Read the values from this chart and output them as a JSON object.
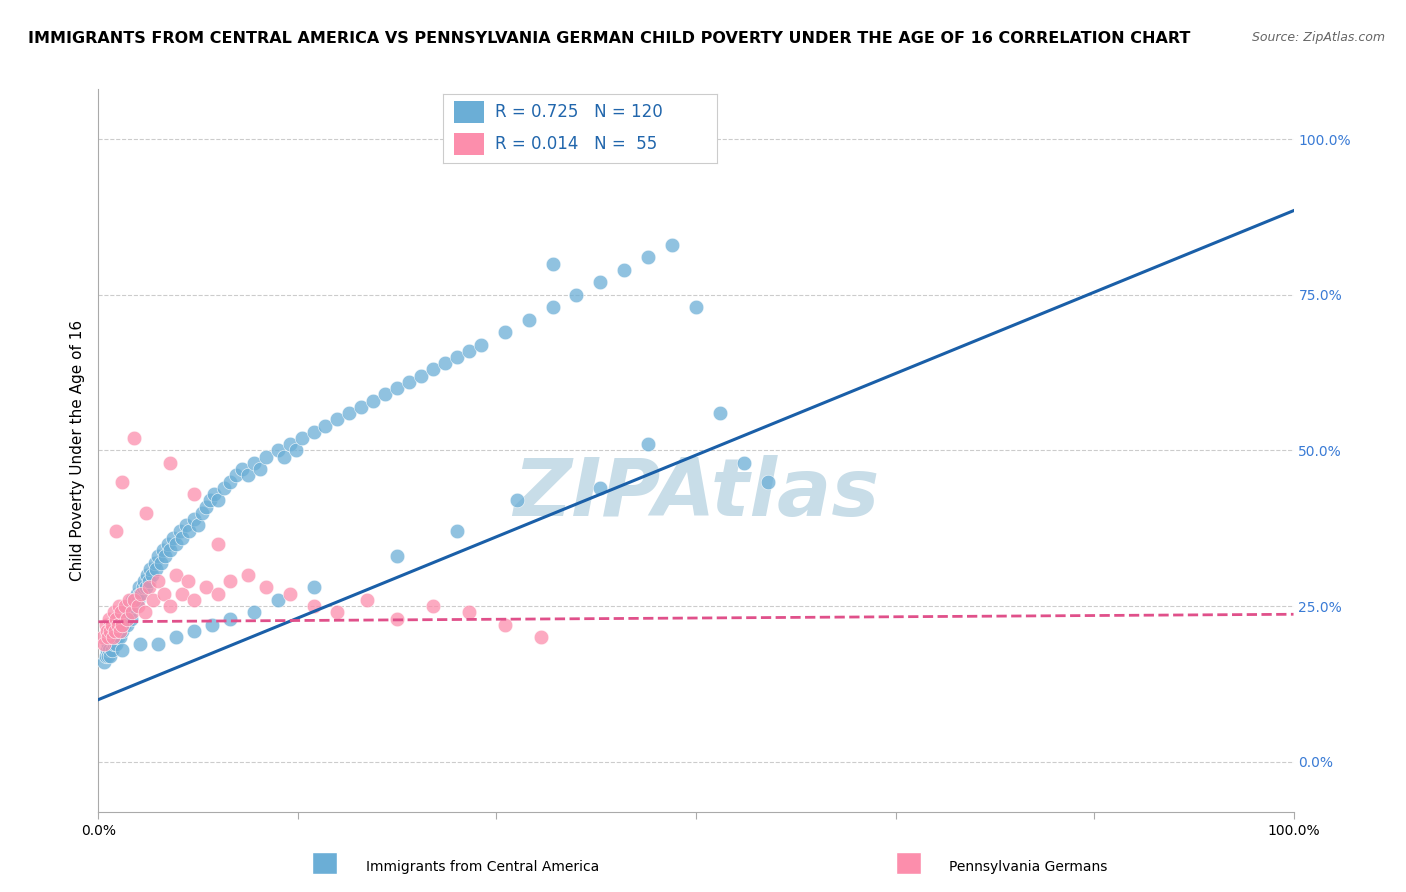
{
  "title": "IMMIGRANTS FROM CENTRAL AMERICA VS PENNSYLVANIA GERMAN CHILD POVERTY UNDER THE AGE OF 16 CORRELATION CHART",
  "source": "Source: ZipAtlas.com",
  "ylabel": "Child Poverty Under the Age of 16",
  "xlim": [
    0,
    1
  ],
  "ylim": [
    -0.08,
    1.08
  ],
  "ytick_values": [
    0.0,
    0.25,
    0.5,
    0.75,
    1.0
  ],
  "xtick_positions": [
    0.0,
    0.167,
    0.333,
    0.5,
    0.667,
    0.833,
    1.0
  ],
  "blue_color": "#6baed6",
  "pink_color": "#fc8eac",
  "blue_edge": "white",
  "pink_edge": "white",
  "blue_trend_color": "#1a5fa8",
  "pink_trend_color": "#e0508a",
  "blue_R": "0.725",
  "blue_N": "120",
  "pink_R": "0.014",
  "pink_N": "55",
  "blue_trend_x": [
    0.0,
    1.0
  ],
  "blue_trend_y": [
    0.1,
    0.885
  ],
  "pink_trend_x": [
    0.0,
    1.0
  ],
  "pink_trend_y": [
    0.225,
    0.237
  ],
  "watermark": "ZIPAtlas",
  "watermark_color": "#c8dde8",
  "background_color": "#ffffff",
  "grid_color": "#cccccc",
  "spine_color": "#aaaaaa",
  "title_fontsize": 11.5,
  "source_fontsize": 9,
  "axis_label_fontsize": 11,
  "tick_color": "#3a7bd5",
  "tick_fontsize": 10,
  "legend_label1": "Immigrants from Central America",
  "legend_label2": "Pennsylvania Germans",
  "blue_scatter_x": [
    0.005,
    0.006,
    0.007,
    0.008,
    0.008,
    0.009,
    0.01,
    0.01,
    0.011,
    0.012,
    0.013,
    0.013,
    0.014,
    0.015,
    0.015,
    0.016,
    0.017,
    0.017,
    0.018,
    0.019,
    0.02,
    0.02,
    0.021,
    0.022,
    0.023,
    0.024,
    0.025,
    0.026,
    0.027,
    0.028,
    0.03,
    0.031,
    0.032,
    0.033,
    0.034,
    0.035,
    0.037,
    0.038,
    0.04,
    0.041,
    0.042,
    0.043,
    0.045,
    0.047,
    0.048,
    0.05,
    0.052,
    0.054,
    0.056,
    0.058,
    0.06,
    0.062,
    0.065,
    0.068,
    0.07,
    0.073,
    0.076,
    0.08,
    0.083,
    0.087,
    0.09,
    0.093,
    0.097,
    0.1,
    0.105,
    0.11,
    0.115,
    0.12,
    0.125,
    0.13,
    0.135,
    0.14,
    0.15,
    0.155,
    0.16,
    0.165,
    0.17,
    0.18,
    0.19,
    0.2,
    0.21,
    0.22,
    0.23,
    0.24,
    0.25,
    0.26,
    0.27,
    0.28,
    0.29,
    0.3,
    0.31,
    0.32,
    0.34,
    0.36,
    0.38,
    0.4,
    0.42,
    0.44,
    0.46,
    0.48,
    0.5,
    0.52,
    0.54,
    0.56,
    0.38,
    0.42,
    0.46,
    0.3,
    0.35,
    0.25,
    0.18,
    0.15,
    0.13,
    0.11,
    0.095,
    0.08,
    0.065,
    0.05,
    0.035,
    0.02
  ],
  "blue_scatter_y": [
    0.16,
    0.17,
    0.18,
    0.17,
    0.19,
    0.18,
    0.17,
    0.2,
    0.18,
    0.2,
    0.19,
    0.21,
    0.2,
    0.19,
    0.22,
    0.2,
    0.21,
    0.23,
    0.2,
    0.22,
    0.21,
    0.23,
    0.22,
    0.24,
    0.23,
    0.22,
    0.25,
    0.24,
    0.23,
    0.26,
    0.25,
    0.26,
    0.27,
    0.26,
    0.28,
    0.27,
    0.28,
    0.29,
    0.28,
    0.3,
    0.29,
    0.31,
    0.3,
    0.32,
    0.31,
    0.33,
    0.32,
    0.34,
    0.33,
    0.35,
    0.34,
    0.36,
    0.35,
    0.37,
    0.36,
    0.38,
    0.37,
    0.39,
    0.38,
    0.4,
    0.41,
    0.42,
    0.43,
    0.42,
    0.44,
    0.45,
    0.46,
    0.47,
    0.46,
    0.48,
    0.47,
    0.49,
    0.5,
    0.49,
    0.51,
    0.5,
    0.52,
    0.53,
    0.54,
    0.55,
    0.56,
    0.57,
    0.58,
    0.59,
    0.6,
    0.61,
    0.62,
    0.63,
    0.64,
    0.65,
    0.66,
    0.67,
    0.69,
    0.71,
    0.73,
    0.75,
    0.77,
    0.79,
    0.81,
    0.83,
    0.73,
    0.56,
    0.48,
    0.45,
    0.8,
    0.44,
    0.51,
    0.37,
    0.42,
    0.33,
    0.28,
    0.26,
    0.24,
    0.23,
    0.22,
    0.21,
    0.2,
    0.19,
    0.19,
    0.18
  ],
  "pink_scatter_x": [
    0.004,
    0.005,
    0.006,
    0.007,
    0.008,
    0.009,
    0.01,
    0.011,
    0.012,
    0.013,
    0.014,
    0.015,
    0.016,
    0.017,
    0.018,
    0.019,
    0.02,
    0.022,
    0.024,
    0.026,
    0.028,
    0.03,
    0.033,
    0.036,
    0.039,
    0.042,
    0.046,
    0.05,
    0.055,
    0.06,
    0.065,
    0.07,
    0.075,
    0.08,
    0.09,
    0.1,
    0.11,
    0.125,
    0.14,
    0.16,
    0.18,
    0.2,
    0.225,
    0.25,
    0.28,
    0.31,
    0.34,
    0.37,
    0.04,
    0.06,
    0.08,
    0.1,
    0.03,
    0.02,
    0.015
  ],
  "pink_scatter_y": [
    0.2,
    0.19,
    0.22,
    0.21,
    0.2,
    0.23,
    0.21,
    0.22,
    0.2,
    0.24,
    0.21,
    0.23,
    0.22,
    0.25,
    0.21,
    0.24,
    0.22,
    0.25,
    0.23,
    0.26,
    0.24,
    0.26,
    0.25,
    0.27,
    0.24,
    0.28,
    0.26,
    0.29,
    0.27,
    0.25,
    0.3,
    0.27,
    0.29,
    0.26,
    0.28,
    0.27,
    0.29,
    0.3,
    0.28,
    0.27,
    0.25,
    0.24,
    0.26,
    0.23,
    0.25,
    0.24,
    0.22,
    0.2,
    0.4,
    0.48,
    0.43,
    0.35,
    0.52,
    0.45,
    0.37
  ]
}
